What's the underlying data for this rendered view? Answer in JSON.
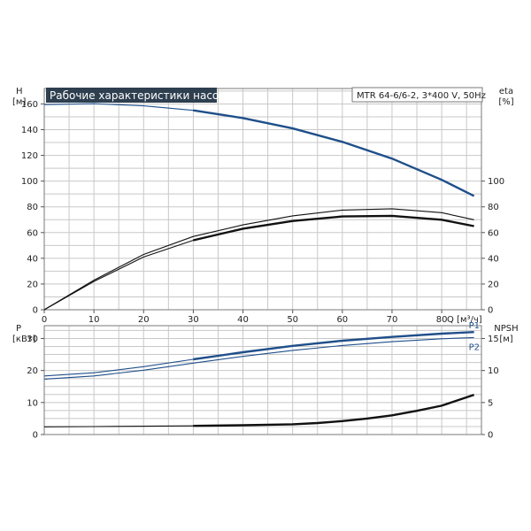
{
  "title": "Рабочие характеристики насоса",
  "model": "MTR 64-6/6-2, 3*400 V, 50Hz",
  "colors": {
    "blue": "#1f4f8a",
    "black": "#111111",
    "banner": "#2e3f4f"
  },
  "chart_data": [
    {
      "type": "line",
      "panel": "upper",
      "grid": true,
      "xlabel": "Q [м³/ч]",
      "xlim": [
        0,
        88
      ],
      "x_ticks": [
        "0",
        "10",
        "20",
        "30",
        "40",
        "50",
        "60",
        "70",
        "80"
      ],
      "y_left": {
        "label_top": "H",
        "label_unit": "[м]",
        "lim": [
          0,
          172
        ],
        "ticks": [
          "0",
          "20",
          "40",
          "60",
          "80",
          "100",
          "120",
          "140",
          "160"
        ]
      },
      "y_right": {
        "label_top": "eta",
        "label_unit": "[%]",
        "lim": [
          0,
          172
        ],
        "ticks": [
          "0",
          "20",
          "40",
          "60",
          "80",
          "100"
        ]
      },
      "series": [
        {
          "color": "blue",
          "axis": "left",
          "emphasized_from": 30,
          "x": [
            0,
            10,
            20,
            30,
            40,
            50,
            60,
            70,
            80,
            86.5
          ],
          "y": [
            159.5,
            160.2,
            158.5,
            155,
            149,
            141,
            130.5,
            117.5,
            101,
            88.5
          ]
        },
        {
          "color": "black",
          "axis": "right",
          "emphasized_from": 30,
          "x": [
            0,
            10,
            20,
            30,
            40,
            50,
            60,
            70,
            80,
            86.5
          ],
          "y": [
            0,
            22,
            41,
            54,
            63,
            69,
            72.5,
            73,
            70,
            65
          ]
        },
        {
          "color": "black",
          "axis": "right",
          "emphasized_from": 999,
          "x": [
            0,
            10,
            20,
            30,
            40,
            50,
            60,
            70,
            80,
            86.5
          ],
          "y": [
            0,
            23,
            43,
            57,
            66,
            73,
            77.5,
            78.5,
            75.5,
            70
          ]
        }
      ]
    },
    {
      "type": "line",
      "panel": "lower",
      "grid": true,
      "xlim": [
        0,
        88
      ],
      "y_left": {
        "label_top": "P",
        "label_unit": "[кВт]",
        "lim": [
          0,
          34
        ],
        "ticks": [
          "0",
          "10",
          "20",
          "30"
        ]
      },
      "y_right": {
        "label_top": "NPSH",
        "label_unit": "[м]",
        "lim": [
          0,
          17
        ],
        "ticks": [
          "0",
          "5",
          "10",
          "15"
        ]
      },
      "series": [
        {
          "name": "P1",
          "color": "blue",
          "axis": "left",
          "emphasized_from": 30,
          "x": [
            0,
            10,
            20,
            30,
            40,
            50,
            60,
            70,
            80,
            86.5
          ],
          "y": [
            18.3,
            19.3,
            21.2,
            23.5,
            25.7,
            27.7,
            29.3,
            30.5,
            31.5,
            32
          ]
        },
        {
          "name": "P2",
          "color": "blue",
          "axis": "left",
          "emphasized_from": 999,
          "x": [
            0,
            10,
            20,
            30,
            40,
            50,
            60,
            70,
            80,
            86.5
          ],
          "y": [
            17.3,
            18.3,
            20.1,
            22.3,
            24.4,
            26.3,
            27.8,
            29,
            29.9,
            30.3
          ]
        },
        {
          "color": "black",
          "axis": "right",
          "emphasized_from": 30,
          "x": [
            0,
            10,
            20,
            30,
            40,
            50,
            55,
            60,
            65,
            70,
            75,
            80,
            86.5
          ],
          "y": [
            1.2,
            1.25,
            1.3,
            1.35,
            1.45,
            1.6,
            1.8,
            2.1,
            2.5,
            3.0,
            3.7,
            4.5,
            6.2
          ]
        }
      ]
    }
  ]
}
